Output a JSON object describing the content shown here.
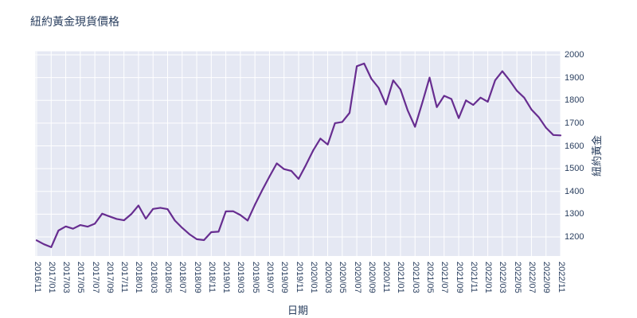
{
  "title": "紐約黃金現貨價格",
  "colors": {
    "line": "#672d90",
    "plot_background": "#e5e8f3",
    "grid": "#ffffff",
    "text": "#2a3f5f",
    "page_background": "#ffffff"
  },
  "chart_data": {
    "type": "line",
    "title": "紐約黃金現貨價格",
    "xlabel": "日期",
    "ylabel": "紐約黃金",
    "legend_position": "none",
    "grid": true,
    "x_tick_step": 2,
    "yticks": [
      1200,
      1300,
      1400,
      1500,
      1600,
      1700,
      1800,
      1900,
      2000
    ],
    "ylim": [
      1115,
      2015
    ],
    "x": [
      "2016/11",
      "2016/12",
      "2017/01",
      "2017/02",
      "2017/03",
      "2017/04",
      "2017/05",
      "2017/06",
      "2017/07",
      "2017/08",
      "2017/09",
      "2017/10",
      "2017/11",
      "2017/12",
      "2018/01",
      "2018/02",
      "2018/03",
      "2018/04",
      "2018/05",
      "2018/06",
      "2018/07",
      "2018/08",
      "2018/09",
      "2018/10",
      "2018/11",
      "2018/12",
      "2019/01",
      "2019/02",
      "2019/03",
      "2019/04",
      "2019/05",
      "2019/06",
      "2019/07",
      "2019/08",
      "2019/09",
      "2019/10",
      "2019/11",
      "2019/12",
      "2020/01",
      "2020/02",
      "2020/03",
      "2020/04",
      "2020/05",
      "2020/06",
      "2020/07",
      "2020/08",
      "2020/09",
      "2020/10",
      "2020/11",
      "2020/12",
      "2021/01",
      "2021/02",
      "2021/03",
      "2021/04",
      "2021/05",
      "2021/06",
      "2021/07",
      "2021/08",
      "2021/09",
      "2021/10",
      "2021/11",
      "2021/12",
      "2022/01",
      "2022/02",
      "2022/03",
      "2022/04",
      "2022/05",
      "2022/06",
      "2022/07",
      "2022/08",
      "2022/09",
      "2022/10",
      "2022/11"
    ],
    "values": [
      1185,
      1168,
      1155,
      1228,
      1246,
      1236,
      1252,
      1245,
      1258,
      1302,
      1290,
      1279,
      1273,
      1300,
      1338,
      1280,
      1323,
      1328,
      1322,
      1272,
      1240,
      1212,
      1190,
      1186,
      1221,
      1223,
      1312,
      1313,
      1296,
      1272,
      1342,
      1405,
      1465,
      1523,
      1498,
      1490,
      1455,
      1515,
      1580,
      1632,
      1606,
      1700,
      1705,
      1745,
      1950,
      1962,
      1895,
      1855,
      1782,
      1888,
      1848,
      1755,
      1684,
      1790,
      1900,
      1770,
      1820,
      1806,
      1722,
      1800,
      1780,
      1812,
      1794,
      1888,
      1928,
      1888,
      1842,
      1812,
      1760,
      1726,
      1680,
      1648,
      1646
    ]
  }
}
